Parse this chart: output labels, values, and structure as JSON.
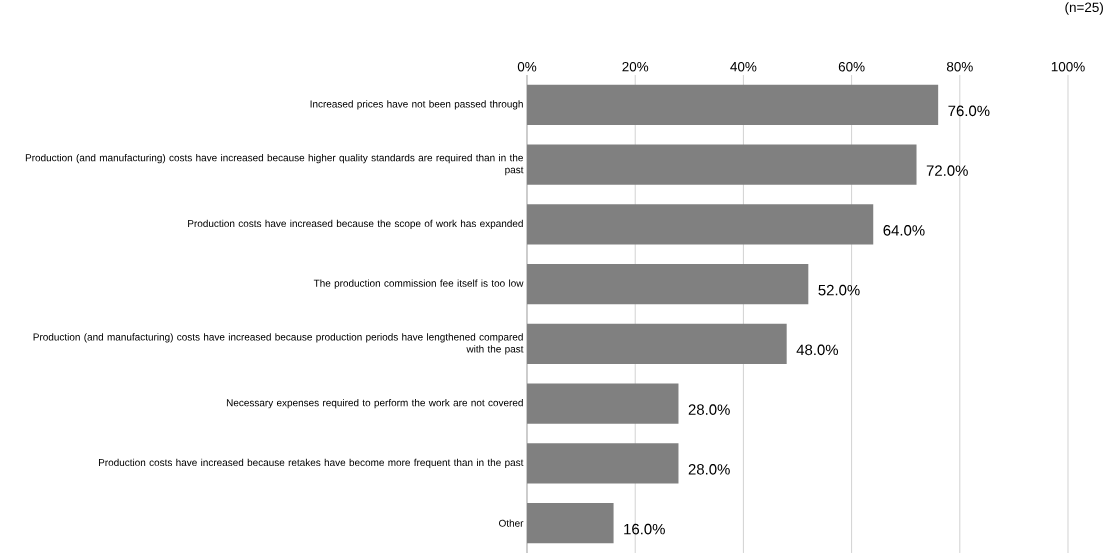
{
  "chart_data": {
    "type": "bar",
    "orientation": "horizontal",
    "categories": [
      "Increased prices have not been passed through",
      "Production (and manufacturing) costs have increased because higher quality standards are required than in the past",
      "Production costs have increased because the scope of work has expanded",
      "The production commission fee itself is too low",
      "Production (and manufacturing) costs have increased because production periods have lengthened compared with the past",
      "Necessary expenses required to perform the work are not covered",
      "Production costs have increased because retakes have become more frequent than in the past",
      "Other"
    ],
    "values": [
      76,
      72,
      64,
      52,
      48,
      28,
      28,
      16
    ],
    "value_labels": [
      "76.0%",
      "72.0%",
      "64.0%",
      "52.0%",
      "48.0%",
      "28.0%",
      "28.0%",
      "16.0%"
    ],
    "color": "#808080",
    "xlim": [
      0,
      100
    ],
    "xticks": [
      {
        "value": 0,
        "label": "0%"
      },
      {
        "value": 20,
        "label": "20%"
      },
      {
        "value": 40,
        "label": "40%"
      },
      {
        "value": 60,
        "label": "60%"
      },
      {
        "value": 80,
        "label": "80%"
      },
      {
        "value": 100,
        "label": "100%"
      }
    ],
    "grid": "x",
    "annotations": [
      "(n=25)"
    ]
  }
}
